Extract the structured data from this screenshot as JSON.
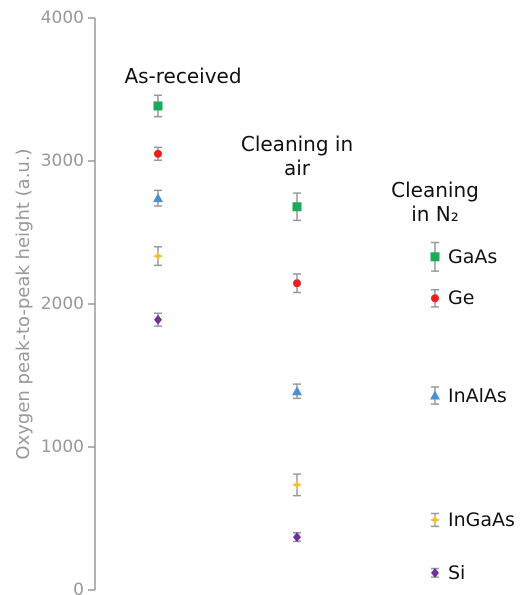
{
  "chart_data": {
    "type": "scatter",
    "ylabel": "Oxygen peak-to-peak height (a.u.)",
    "categories": [
      "As-received",
      "Cleaning in air",
      "Cleaning in N₂"
    ],
    "ylim": [
      0,
      4000
    ],
    "yticks": [
      0,
      1000,
      2000,
      3000,
      4000
    ],
    "error_color": "#999999",
    "series": [
      {
        "name": "GaAs",
        "color": "#1aaa5a",
        "marker": "square",
        "values": [
          3385,
          2680,
          2330
        ],
        "errors": [
          75,
          95,
          100
        ]
      },
      {
        "name": "Ge",
        "color": "#e8201e",
        "marker": "circle",
        "values": [
          3050,
          2145,
          2040
        ],
        "errors": [
          45,
          65,
          60
        ]
      },
      {
        "name": "InAlAs",
        "color": "#4a8fd0",
        "marker": "triangle",
        "values": [
          2740,
          1390,
          1360
        ],
        "errors": [
          55,
          50,
          60
        ]
      },
      {
        "name": "InGaAs",
        "color": "#f0c030",
        "marker": "star",
        "values": [
          2335,
          735,
          490
        ],
        "errors": [
          65,
          75,
          45
        ]
      },
      {
        "name": "Si",
        "color": "#7030a0",
        "marker": "diamond",
        "values": [
          1890,
          370,
          120
        ],
        "errors": [
          45,
          30,
          30
        ]
      }
    ]
  }
}
